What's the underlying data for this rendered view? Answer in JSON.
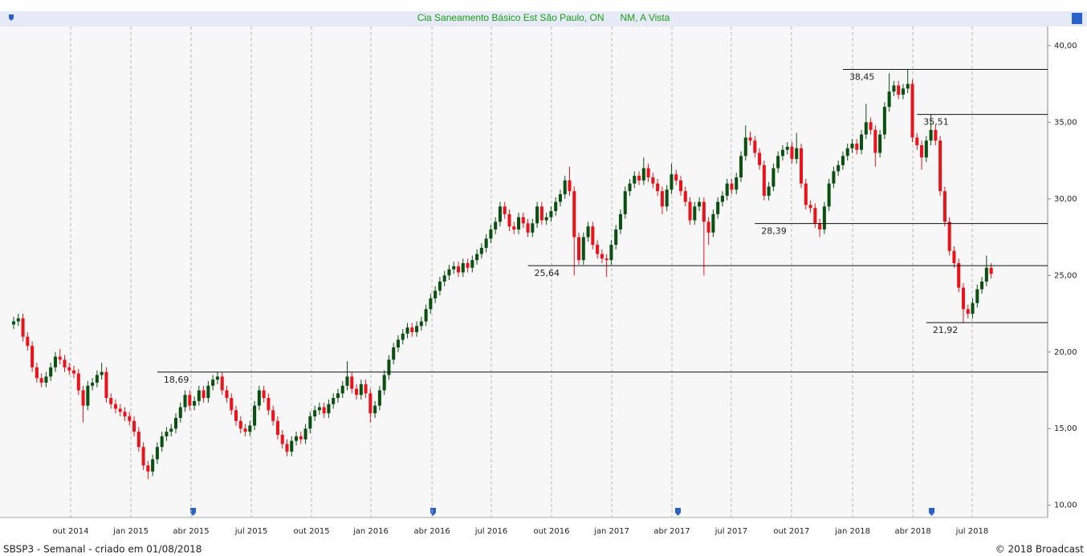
{
  "chart_data": {
    "type": "candlestick",
    "title": "Cia Saneamento Básico Est São Paulo, ON      NM, A Vista",
    "footer_left": "SBSP3 - Semanal - criado em 01/08/2018",
    "footer_right": "© 2018 Broadcast",
    "up_color": "#0b4f12",
    "down_color": "#e8141c",
    "xlim": [
      -2.95,
      223.2
    ],
    "ylim": [
      9.2,
      41.25
    ],
    "yticks": [
      {
        "value": 10,
        "label": "10,00"
      },
      {
        "value": 15,
        "label": "15,00"
      },
      {
        "value": 20,
        "label": "20,00"
      },
      {
        "value": 25,
        "label": "25,00"
      },
      {
        "value": 30,
        "label": "30,00"
      },
      {
        "value": 35,
        "label": "35,00"
      },
      {
        "value": 40,
        "label": "40,00"
      }
    ],
    "xticks": [
      {
        "value": 12.3,
        "label": "out 2014"
      },
      {
        "value": 25.3,
        "label": "jan 2015"
      },
      {
        "value": 38.3,
        "label": "abr 2015"
      },
      {
        "value": 51.3,
        "label": "jul 2015"
      },
      {
        "value": 64.3,
        "label": "out 2015"
      },
      {
        "value": 77.1,
        "label": "jan 2016"
      },
      {
        "value": 90.3,
        "label": "abr 2016"
      },
      {
        "value": 103.1,
        "label": "jul 2016"
      },
      {
        "value": 116.1,
        "label": "out 2016"
      },
      {
        "value": 129.1,
        "label": "jan 2017"
      },
      {
        "value": 142.1,
        "label": "abr 2017"
      },
      {
        "value": 154.9,
        "label": "jul 2017"
      },
      {
        "value": 167.9,
        "label": "out 2017"
      },
      {
        "value": 181.1,
        "label": "jan 2018"
      },
      {
        "value": 194.1,
        "label": "abr 2018"
      },
      {
        "value": 206.9,
        "label": "jul 2018"
      }
    ],
    "grid": true,
    "levels": [
      {
        "value": 38.45,
        "label": "38,45",
        "x": 179
      },
      {
        "value": 35.51,
        "label": "35,51",
        "x": 195
      },
      {
        "value": 28.39,
        "label": "28,39",
        "x": 160
      },
      {
        "value": 25.64,
        "label": "25,64",
        "x": 111
      },
      {
        "value": 21.92,
        "label": "21,92",
        "x": 197
      },
      {
        "value": 18.69,
        "label": "18,69",
        "x": 31
      }
    ],
    "candles": [
      [
        21.8,
        22.3,
        21.5,
        22.0
      ],
      [
        22.0,
        22.5,
        21.7,
        22.2
      ],
      [
        22.2,
        22.5,
        20.7,
        21.0
      ],
      [
        21.0,
        21.3,
        20.1,
        20.4
      ],
      [
        20.4,
        20.7,
        18.7,
        19.0
      ],
      [
        19.0,
        19.3,
        18.0,
        18.3
      ],
      [
        18.3,
        18.6,
        17.7,
        18.0
      ],
      [
        18.0,
        18.7,
        17.7,
        18.4
      ],
      [
        18.4,
        19.3,
        18.1,
        19.0
      ],
      [
        19.0,
        20.0,
        18.7,
        19.7
      ],
      [
        19.7,
        20.2,
        19.2,
        19.5
      ],
      [
        19.5,
        19.8,
        18.7,
        19.0
      ],
      [
        19.0,
        19.3,
        18.5,
        18.8
      ],
      [
        18.8,
        19.1,
        18.3,
        18.6
      ],
      [
        18.6,
        18.9,
        17.2,
        17.5
      ],
      [
        17.5,
        17.8,
        15.4,
        16.5
      ],
      [
        16.5,
        18.1,
        16.2,
        17.8
      ],
      [
        17.8,
        18.3,
        17.5,
        18.0
      ],
      [
        18.0,
        18.8,
        17.7,
        18.5
      ],
      [
        18.5,
        19.3,
        18.2,
        18.7
      ],
      [
        18.7,
        19.0,
        16.7,
        17.0
      ],
      [
        17.0,
        17.3,
        16.3,
        16.6
      ],
      [
        16.6,
        16.9,
        16.0,
        16.3
      ],
      [
        16.3,
        16.6,
        15.8,
        16.1
      ],
      [
        16.1,
        16.4,
        15.5,
        15.8
      ],
      [
        15.8,
        16.1,
        15.2,
        15.5
      ],
      [
        15.5,
        15.8,
        14.5,
        14.8
      ],
      [
        14.8,
        15.1,
        13.5,
        13.8
      ],
      [
        13.8,
        14.1,
        12.3,
        12.6
      ],
      [
        12.6,
        12.9,
        11.7,
        12.2
      ],
      [
        12.2,
        13.3,
        11.9,
        13.0
      ],
      [
        13.0,
        14.1,
        12.7,
        13.8
      ],
      [
        13.8,
        14.8,
        13.5,
        14.5
      ],
      [
        14.5,
        15.1,
        14.2,
        14.8
      ],
      [
        14.8,
        15.3,
        14.5,
        15.0
      ],
      [
        15.0,
        16.0,
        14.7,
        15.7
      ],
      [
        15.7,
        16.7,
        15.4,
        16.4
      ],
      [
        16.4,
        17.5,
        16.1,
        17.2
      ],
      [
        17.2,
        17.5,
        16.2,
        16.5
      ],
      [
        16.5,
        17.1,
        16.2,
        16.8
      ],
      [
        16.8,
        17.8,
        16.5,
        17.5
      ],
      [
        17.5,
        17.8,
        16.7,
        17.0
      ],
      [
        17.0,
        18.1,
        16.7,
        17.8
      ],
      [
        17.8,
        18.5,
        17.5,
        18.2
      ],
      [
        18.2,
        18.69,
        17.9,
        18.4
      ],
      [
        18.4,
        18.7,
        17.2,
        17.5
      ],
      [
        17.5,
        17.8,
        16.7,
        17.0
      ],
      [
        17.0,
        17.3,
        15.9,
        16.2
      ],
      [
        16.2,
        16.5,
        15.2,
        15.5
      ],
      [
        15.5,
        15.8,
        14.7,
        15.0
      ],
      [
        15.0,
        15.3,
        14.5,
        14.8
      ],
      [
        14.8,
        15.5,
        14.5,
        15.2
      ],
      [
        15.2,
        16.8,
        14.9,
        16.5
      ],
      [
        16.5,
        17.8,
        16.2,
        17.5
      ],
      [
        17.5,
        17.8,
        16.7,
        17.0
      ],
      [
        17.0,
        17.3,
        15.9,
        16.2
      ],
      [
        16.2,
        16.5,
        15.2,
        15.5
      ],
      [
        15.5,
        15.8,
        14.3,
        14.6
      ],
      [
        14.6,
        14.9,
        13.7,
        14.0
      ],
      [
        14.0,
        14.3,
        13.2,
        13.5
      ],
      [
        13.5,
        14.5,
        13.2,
        14.2
      ],
      [
        14.2,
        14.8,
        13.9,
        14.5
      ],
      [
        14.5,
        14.8,
        14.0,
        14.3
      ],
      [
        14.3,
        15.3,
        14.0,
        15.0
      ],
      [
        15.0,
        16.1,
        14.7,
        15.8
      ],
      [
        15.8,
        16.5,
        15.5,
        16.2
      ],
      [
        16.2,
        16.7,
        15.9,
        16.4
      ],
      [
        16.4,
        16.7,
        15.7,
        16.0
      ],
      [
        16.0,
        16.9,
        15.7,
        16.6
      ],
      [
        16.6,
        17.3,
        16.3,
        17.0
      ],
      [
        17.0,
        17.6,
        16.7,
        17.3
      ],
      [
        17.3,
        18.1,
        17.0,
        17.8
      ],
      [
        17.8,
        19.4,
        17.5,
        18.4
      ],
      [
        18.4,
        18.7,
        17.3,
        17.6
      ],
      [
        17.6,
        17.9,
        16.9,
        17.2
      ],
      [
        17.2,
        18.2,
        16.9,
        17.9
      ],
      [
        17.9,
        18.2,
        17.0,
        17.3
      ],
      [
        17.3,
        17.6,
        15.4,
        16.0
      ],
      [
        16.0,
        16.8,
        15.7,
        16.5
      ],
      [
        16.5,
        17.8,
        16.2,
        17.5
      ],
      [
        17.5,
        18.8,
        17.2,
        18.5
      ],
      [
        18.5,
        19.8,
        18.2,
        19.5
      ],
      [
        19.5,
        20.6,
        19.2,
        20.3
      ],
      [
        20.3,
        21.1,
        20.0,
        20.8
      ],
      [
        20.8,
        21.5,
        20.5,
        21.2
      ],
      [
        21.2,
        21.9,
        20.9,
        21.6
      ],
      [
        21.6,
        21.9,
        21.0,
        21.3
      ],
      [
        21.3,
        22.0,
        21.0,
        21.7
      ],
      [
        21.7,
        22.3,
        21.4,
        22.0
      ],
      [
        22.0,
        23.1,
        21.7,
        22.8
      ],
      [
        22.8,
        23.8,
        22.5,
        23.5
      ],
      [
        23.5,
        24.3,
        23.2,
        24.0
      ],
      [
        24.0,
        24.9,
        23.7,
        24.6
      ],
      [
        24.6,
        25.3,
        24.3,
        25.0
      ],
      [
        25.0,
        25.7,
        24.7,
        25.4
      ],
      [
        25.4,
        25.9,
        25.1,
        25.6
      ],
      [
        25.6,
        25.9,
        24.9,
        25.2
      ],
      [
        25.2,
        26.1,
        24.9,
        25.8
      ],
      [
        25.8,
        26.1,
        25.2,
        25.5
      ],
      [
        25.5,
        26.3,
        25.2,
        26.0
      ],
      [
        26.0,
        26.7,
        25.7,
        26.4
      ],
      [
        26.4,
        27.1,
        26.1,
        26.8
      ],
      [
        26.8,
        27.7,
        26.5,
        27.4
      ],
      [
        27.4,
        28.3,
        27.1,
        28.0
      ],
      [
        28.0,
        28.8,
        27.7,
        28.5
      ],
      [
        28.5,
        29.8,
        28.2,
        29.5
      ],
      [
        29.5,
        29.8,
        28.7,
        29.0
      ],
      [
        29.0,
        29.3,
        27.9,
        28.2
      ],
      [
        28.2,
        28.5,
        27.7,
        28.0
      ],
      [
        28.0,
        29.1,
        27.7,
        28.8
      ],
      [
        28.8,
        29.1,
        28.1,
        28.4
      ],
      [
        28.4,
        28.7,
        27.5,
        27.8
      ],
      [
        27.8,
        28.7,
        27.5,
        28.4
      ],
      [
        28.4,
        29.8,
        28.1,
        29.5
      ],
      [
        29.5,
        29.8,
        28.3,
        28.6
      ],
      [
        28.6,
        29.1,
        28.3,
        28.8
      ],
      [
        28.8,
        29.5,
        28.5,
        29.2
      ],
      [
        29.2,
        30.1,
        28.9,
        29.8
      ],
      [
        29.8,
        30.6,
        29.5,
        30.3
      ],
      [
        30.3,
        31.5,
        30.0,
        31.2
      ],
      [
        31.2,
        32.1,
        30.2,
        30.5
      ],
      [
        30.5,
        30.8,
        25.0,
        27.5
      ],
      [
        27.5,
        27.8,
        25.7,
        26.0
      ],
      [
        26.0,
        27.8,
        25.7,
        27.5
      ],
      [
        27.5,
        28.5,
        27.2,
        28.2
      ],
      [
        28.2,
        28.5,
        26.7,
        27.0
      ],
      [
        27.0,
        27.3,
        26.1,
        26.4
      ],
      [
        26.4,
        26.7,
        25.8,
        26.1
      ],
      [
        26.1,
        26.4,
        24.9,
        26.0
      ],
      [
        26.0,
        27.3,
        25.7,
        27.0
      ],
      [
        27.0,
        28.3,
        26.7,
        28.0
      ],
      [
        28.0,
        29.3,
        27.7,
        29.0
      ],
      [
        29.0,
        30.8,
        28.7,
        30.5
      ],
      [
        30.5,
        31.3,
        30.2,
        31.0
      ],
      [
        31.0,
        31.8,
        30.7,
        31.5
      ],
      [
        31.5,
        31.8,
        30.9,
        31.2
      ],
      [
        31.2,
        32.7,
        30.9,
        32.0
      ],
      [
        32.0,
        32.3,
        31.1,
        31.4
      ],
      [
        31.4,
        31.7,
        30.7,
        31.0
      ],
      [
        31.0,
        31.3,
        30.2,
        30.5
      ],
      [
        30.5,
        30.8,
        29.0,
        29.5
      ],
      [
        29.5,
        30.9,
        29.2,
        30.6
      ],
      [
        30.6,
        32.3,
        30.3,
        31.6
      ],
      [
        31.6,
        31.9,
        30.9,
        31.2
      ],
      [
        31.2,
        31.5,
        30.2,
        30.5
      ],
      [
        30.5,
        30.8,
        29.5,
        29.8
      ],
      [
        29.8,
        30.1,
        28.3,
        28.6
      ],
      [
        28.6,
        29.8,
        28.3,
        29.5
      ],
      [
        29.5,
        30.1,
        29.2,
        29.8
      ],
      [
        29.8,
        30.1,
        25.0,
        28.5
      ],
      [
        28.5,
        28.8,
        27.0,
        27.8
      ],
      [
        27.8,
        29.3,
        27.5,
        29.0
      ],
      [
        29.0,
        30.1,
        28.7,
        29.8
      ],
      [
        29.8,
        30.5,
        29.5,
        30.2
      ],
      [
        30.2,
        31.3,
        29.9,
        31.0
      ],
      [
        31.0,
        31.3,
        30.3,
        30.6
      ],
      [
        30.6,
        31.7,
        30.3,
        31.4
      ],
      [
        31.4,
        33.1,
        31.1,
        32.8
      ],
      [
        32.8,
        34.8,
        32.5,
        34.0
      ],
      [
        34.0,
        34.4,
        33.5,
        33.8
      ],
      [
        33.8,
        34.1,
        32.7,
        33.0
      ],
      [
        33.0,
        33.3,
        31.9,
        32.2
      ],
      [
        32.2,
        32.5,
        29.9,
        30.2
      ],
      [
        30.2,
        31.1,
        29.9,
        30.8
      ],
      [
        30.8,
        32.3,
        30.5,
        32.0
      ],
      [
        32.0,
        33.1,
        31.7,
        32.8
      ],
      [
        32.8,
        33.5,
        32.5,
        33.2
      ],
      [
        33.2,
        33.7,
        32.9,
        33.4
      ],
      [
        33.4,
        33.7,
        32.3,
        32.6
      ],
      [
        32.6,
        34.3,
        32.3,
        33.3
      ],
      [
        33.3,
        33.6,
        30.7,
        31.0
      ],
      [
        31.0,
        31.3,
        29.3,
        29.6
      ],
      [
        29.6,
        29.9,
        29.1,
        29.4
      ],
      [
        29.4,
        29.7,
        28.1,
        28.4
      ],
      [
        28.4,
        28.7,
        27.5,
        28.0
      ],
      [
        28.0,
        29.8,
        27.7,
        29.5
      ],
      [
        29.5,
        31.3,
        29.2,
        31.0
      ],
      [
        31.0,
        32.1,
        30.7,
        31.8
      ],
      [
        31.8,
        32.5,
        31.5,
        32.2
      ],
      [
        32.2,
        33.1,
        31.9,
        32.8
      ],
      [
        32.8,
        33.6,
        32.5,
        33.3
      ],
      [
        33.3,
        33.9,
        33.0,
        33.6
      ],
      [
        33.6,
        33.9,
        32.9,
        33.2
      ],
      [
        33.2,
        34.5,
        32.9,
        34.2
      ],
      [
        34.2,
        36.2,
        33.9,
        35.0
      ],
      [
        35.0,
        35.3,
        34.2,
        34.5
      ],
      [
        34.5,
        34.8,
        32.1,
        33.0
      ],
      [
        33.0,
        34.5,
        32.7,
        34.2
      ],
      [
        34.2,
        36.3,
        33.9,
        36.0
      ],
      [
        36.0,
        38.2,
        35.7,
        37.0
      ],
      [
        37.0,
        37.7,
        36.7,
        37.4
      ],
      [
        37.4,
        37.7,
        36.5,
        36.8
      ],
      [
        36.8,
        37.5,
        36.5,
        37.2
      ],
      [
        37.2,
        38.45,
        36.9,
        37.5
      ],
      [
        37.5,
        37.8,
        33.7,
        34.0
      ],
      [
        34.0,
        34.3,
        33.2,
        33.5
      ],
      [
        33.5,
        33.8,
        31.9,
        32.7
      ],
      [
        32.7,
        34.1,
        32.4,
        33.8
      ],
      [
        33.8,
        35.51,
        33.5,
        34.5
      ],
      [
        34.5,
        34.8,
        33.5,
        33.8
      ],
      [
        33.8,
        34.1,
        30.2,
        30.5
      ],
      [
        30.5,
        30.8,
        28.2,
        28.5
      ],
      [
        28.5,
        28.8,
        26.3,
        26.6
      ],
      [
        26.6,
        26.9,
        25.5,
        25.8
      ],
      [
        25.8,
        26.1,
        23.9,
        24.2
      ],
      [
        24.2,
        24.5,
        21.92,
        22.8
      ],
      [
        22.8,
        23.1,
        22.2,
        22.5
      ],
      [
        22.5,
        23.5,
        22.2,
        23.2
      ],
      [
        23.2,
        24.4,
        22.9,
        24.1
      ],
      [
        24.1,
        24.9,
        23.8,
        24.6
      ],
      [
        24.6,
        26.3,
        24.3,
        25.5
      ],
      [
        25.5,
        25.8,
        24.8,
        25.1
      ]
    ]
  }
}
